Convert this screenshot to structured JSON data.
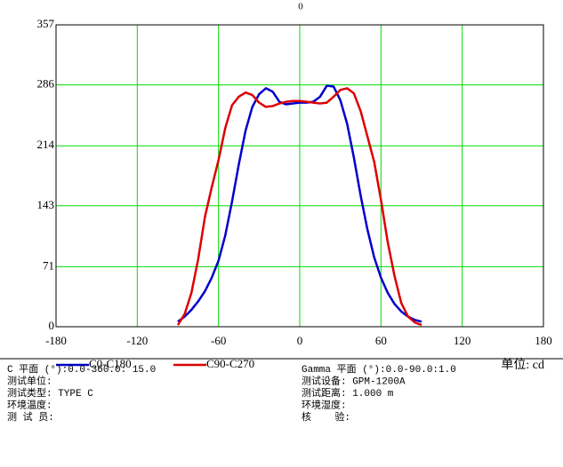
{
  "chart_data": {
    "type": "line",
    "top_label": "0",
    "x": [
      -90,
      -85,
      -80,
      -75,
      -70,
      -65,
      -60,
      -55,
      -50,
      -45,
      -40,
      -35,
      -30,
      -25,
      -20,
      -15,
      -10,
      -5,
      0,
      5,
      10,
      15,
      20,
      25,
      30,
      35,
      40,
      45,
      50,
      55,
      60,
      65,
      70,
      75,
      80,
      85,
      90
    ],
    "series": [
      {
        "name": "C0-C180",
        "color": "#0000cc",
        "values": [
          6,
          12,
          20,
          30,
          42,
          58,
          78,
          108,
          148,
          192,
          232,
          260,
          275,
          282,
          278,
          266,
          263,
          264,
          265,
          265,
          266,
          272,
          285,
          284,
          268,
          240,
          200,
          155,
          115,
          82,
          58,
          40,
          27,
          18,
          12,
          8,
          6
        ]
      },
      {
        "name": "C90-C270",
        "color": "#dd0000",
        "values": [
          2,
          15,
          40,
          80,
          130,
          165,
          197,
          235,
          262,
          272,
          277,
          274,
          265,
          260,
          261,
          264,
          266,
          267,
          267,
          266,
          265,
          264,
          265,
          272,
          280,
          282,
          276,
          255,
          225,
          195,
          150,
          100,
          60,
          28,
          12,
          5,
          2
        ]
      }
    ],
    "xlim": [
      -180,
      180
    ],
    "xticks": [
      -180,
      -120,
      -60,
      0,
      60,
      120,
      180
    ],
    "ylim": [
      0,
      357
    ],
    "yticks": [
      0,
      71,
      143,
      214,
      286,
      357
    ],
    "grid": true,
    "grid_color": "#00dd00",
    "unit_label": "单位: cd",
    "info_left": [
      "C 平面 (°):0.0-360.0: 15.0",
      "测试单位:",
      "测试类型: TYPE C",
      "环境温度:",
      "测 试 员:"
    ],
    "info_right": [
      "Gamma 平面 (°):0.0-90.0:1.0",
      "测试设备: GPM-1200A",
      "测试距离: 1.000 m",
      "环境湿度:",
      "核    验:"
    ]
  }
}
